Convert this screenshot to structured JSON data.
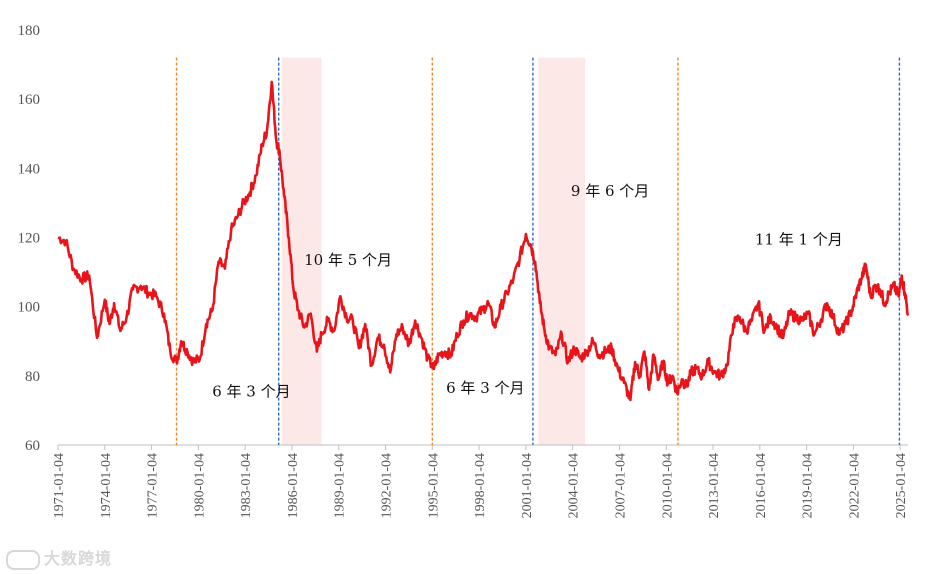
{
  "chart_data": {
    "type": "line",
    "title": "",
    "xlabel": "",
    "ylabel": "",
    "ylim": [
      60,
      180
    ],
    "yticks": [
      60,
      80,
      100,
      120,
      140,
      160,
      180
    ],
    "xlim": [
      1971.0,
      2025.5
    ],
    "xtick_labels": [
      "1971-01-04",
      "1974-01-04",
      "1977-01-04",
      "1980-01-04",
      "1983-01-04",
      "1986-01-04",
      "1989-01-04",
      "1992-01-04",
      "1995-01-04",
      "1998-01-04",
      "2001-01-04",
      "2004-01-04",
      "2007-01-04",
      "2010-01-04",
      "2013-01-04",
      "2016-01-04",
      "2019-01-04",
      "2022-01-04",
      "2025-01-04"
    ],
    "xtick_years": [
      1971,
      1974,
      1977,
      1980,
      1983,
      1986,
      1989,
      1992,
      1995,
      1998,
      2001,
      2004,
      2007,
      2010,
      2013,
      2016,
      2019,
      2022,
      2025
    ],
    "grid": false,
    "series": [
      {
        "name": "",
        "color": "#e8141a",
        "x": [
          1971.0,
          1971.5,
          1972.0,
          1972.5,
          1973.0,
          1973.5,
          1974.0,
          1974.3,
          1974.6,
          1975.0,
          1975.4,
          1975.8,
          1976.3,
          1976.8,
          1977.3,
          1977.8,
          1978.2,
          1978.6,
          1978.9,
          1979.3,
          1979.7,
          1980.1,
          1980.5,
          1980.9,
          1981.3,
          1981.7,
          1982.1,
          1982.5,
          1982.9,
          1983.3,
          1983.7,
          1984.1,
          1984.4,
          1984.7,
          1985.0,
          1985.2,
          1985.5,
          1985.8,
          1986.1,
          1986.4,
          1986.8,
          1987.2,
          1987.6,
          1987.9,
          1988.3,
          1988.7,
          1989.1,
          1989.5,
          1989.9,
          1990.3,
          1990.7,
          1991.1,
          1991.5,
          1991.9,
          1992.3,
          1992.7,
          1993.1,
          1993.5,
          1993.9,
          1994.3,
          1994.7,
          1995.1,
          1995.4,
          1995.8,
          1996.2,
          1996.6,
          1997.0,
          1997.4,
          1997.8,
          1998.2,
          1998.6,
          1999.0,
          1999.4,
          1999.8,
          2000.2,
          2000.6,
          2001.0,
          2001.3,
          2001.6,
          2001.9,
          2002.2,
          2002.5,
          2002.9,
          2003.3,
          2003.7,
          2004.1,
          2004.5,
          2004.9,
          2005.3,
          2005.7,
          2006.1,
          2006.5,
          2006.9,
          2007.3,
          2007.7,
          2008.0,
          2008.3,
          2008.6,
          2008.9,
          2009.2,
          2009.5,
          2009.8,
          2010.1,
          2010.4,
          2010.7,
          2011.0,
          2011.3,
          2011.6,
          2011.9,
          2012.3,
          2012.7,
          2013.1,
          2013.5,
          2013.9,
          2014.3,
          2014.7,
          2015.1,
          2015.5,
          2015.9,
          2016.3,
          2016.7,
          2017.1,
          2017.5,
          2017.9,
          2018.3,
          2018.7,
          2019.1,
          2019.5,
          2019.9,
          2020.3,
          2020.7,
          2021.1,
          2021.5,
          2021.9,
          2022.2,
          2022.5,
          2022.8,
          2023.1,
          2023.4,
          2023.7,
          2024.0,
          2024.3,
          2024.6,
          2024.9,
          2025.1,
          2025.3,
          2025.5
        ],
        "y": [
          120,
          119,
          111,
          108,
          109,
          91,
          102,
          95,
          101,
          93,
          97,
          105,
          106,
          104,
          103,
          98,
          87,
          84,
          90,
          87,
          84,
          85,
          95,
          99,
          113,
          111,
          122,
          126,
          130,
          133,
          138,
          147,
          151,
          165,
          148,
          145,
          132,
          120,
          105,
          99,
          94,
          98,
          87,
          92,
          96,
          93,
          103,
          97,
          96,
          88,
          95,
          83,
          91,
          89,
          81,
          92,
          94,
          89,
          96,
          91,
          85,
          82,
          86,
          87,
          86,
          92,
          96,
          98,
          97,
          99,
          101,
          94,
          100,
          104,
          108,
          114,
          121,
          118,
          113,
          101,
          93,
          88,
          86,
          92,
          84,
          88,
          85,
          87,
          90,
          86,
          87,
          88,
          82,
          78,
          73,
          84,
          80,
          87,
          76,
          86,
          79,
          84,
          78,
          80,
          75,
          79,
          77,
          81,
          82,
          80,
          84,
          81,
          80,
          83,
          95,
          97,
          93,
          96,
          101,
          93,
          97,
          94,
          91,
          98,
          97,
          96,
          98,
          92,
          96,
          101,
          97,
          92,
          95,
          99,
          104,
          108,
          112,
          103,
          106,
          105,
          101,
          104,
          106,
          103,
          109,
          104,
          98
        ]
      }
    ],
    "vertical_lines": [
      {
        "x": 1978.6,
        "color": "#f0862c"
      },
      {
        "x": 1985.15,
        "color": "#2e6cc0"
      },
      {
        "x": 1995.0,
        "color": "#f0862c"
      },
      {
        "x": 2001.45,
        "color": "#2e6cc0"
      },
      {
        "x": 2010.75,
        "color": "#f0862c"
      },
      {
        "x": 2024.95,
        "color": "#2e6cc0"
      }
    ],
    "shaded_regions": [
      {
        "x0": 1985.35,
        "x1": 1987.9,
        "color": "#fde8e8"
      },
      {
        "x0": 2001.8,
        "x1": 2004.8,
        "color": "#fde8e8"
      }
    ],
    "annotations": [
      {
        "text": "6 年 3 个月",
        "x": 1983.4,
        "y": 74
      },
      {
        "text": "10 年 5 个月",
        "x": 1989.6,
        "y": 112
      },
      {
        "text": "6 年 3 个月",
        "x": 1998.4,
        "y": 75
      },
      {
        "text": "9 年 6 个月",
        "x": 2006.4,
        "y": 132
      },
      {
        "text": "11 年 1 个月",
        "x": 2018.5,
        "y": 118
      }
    ]
  },
  "watermark": {
    "text": "大数跨境"
  }
}
